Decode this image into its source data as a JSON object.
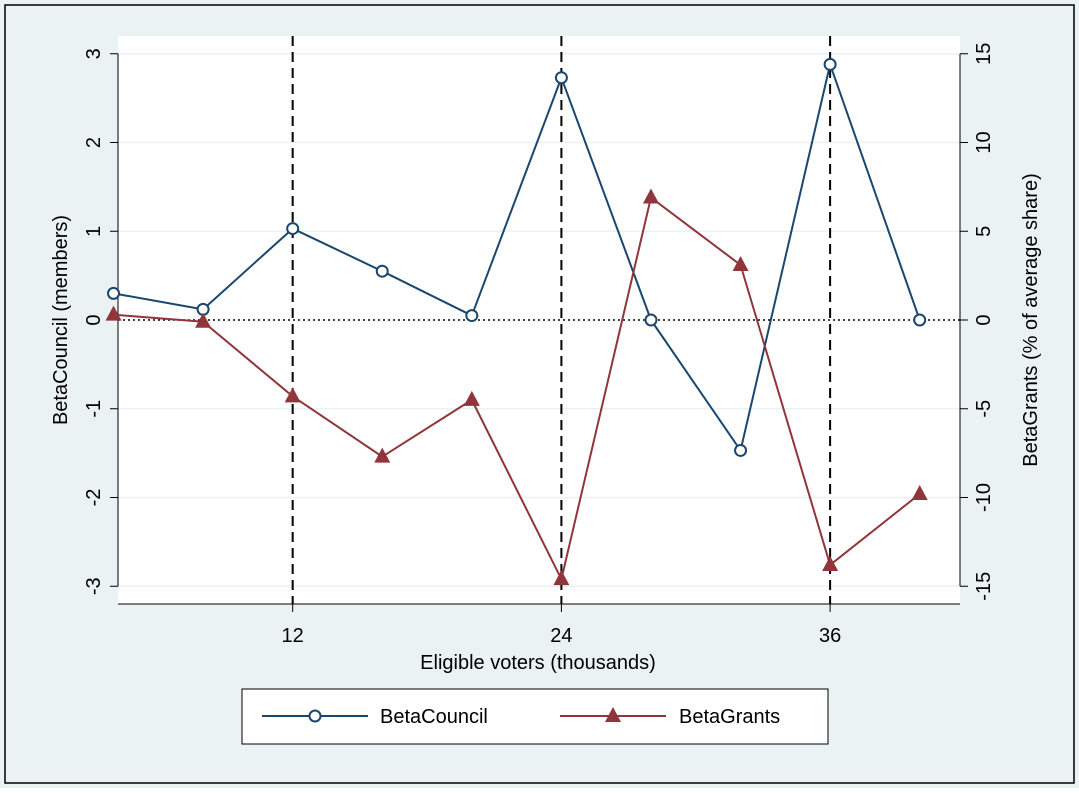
{
  "chart_data": {
    "type": "line",
    "xlabel": "Eligible voters (thousands)",
    "ylabel_left": "BetaCouncil (members)",
    "ylabel_right": "BetaGrants (% of average share)",
    "x_ticks": [
      12,
      24,
      36
    ],
    "x_range": [
      4.2,
      41.8
    ],
    "y_left": {
      "range": [
        -3.2,
        3.2
      ],
      "ticks": [
        -3,
        -2,
        -1,
        0,
        1,
        2,
        3
      ]
    },
    "y_right": {
      "range": [
        -16,
        16
      ],
      "ticks": [
        -15,
        -10,
        -5,
        0,
        5,
        10,
        15
      ]
    },
    "vertical_reference_lines": [
      12,
      24,
      36
    ],
    "horizontal_reference_line": 0,
    "grid": true,
    "legend_position": "bottom",
    "series": [
      {
        "name": "BetaCouncil",
        "axis": "left",
        "color": "#1a476f",
        "marker": "circle",
        "x": [
          4,
          8,
          12,
          16,
          20,
          24,
          28,
          32,
          36,
          40
        ],
        "values": [
          0.3,
          0.12,
          1.03,
          0.55,
          0.05,
          2.73,
          0.0,
          -1.47,
          2.88,
          0.0
        ]
      },
      {
        "name": "BetaGrants",
        "axis": "right",
        "color": "#90353b",
        "marker": "triangle",
        "x": [
          4,
          8,
          12,
          16,
          20,
          24,
          28,
          32,
          36,
          40
        ],
        "values": [
          0.3,
          -0.1,
          -4.3,
          -7.7,
          -4.5,
          -14.6,
          6.9,
          3.1,
          -13.8,
          -9.8
        ]
      }
    ]
  }
}
